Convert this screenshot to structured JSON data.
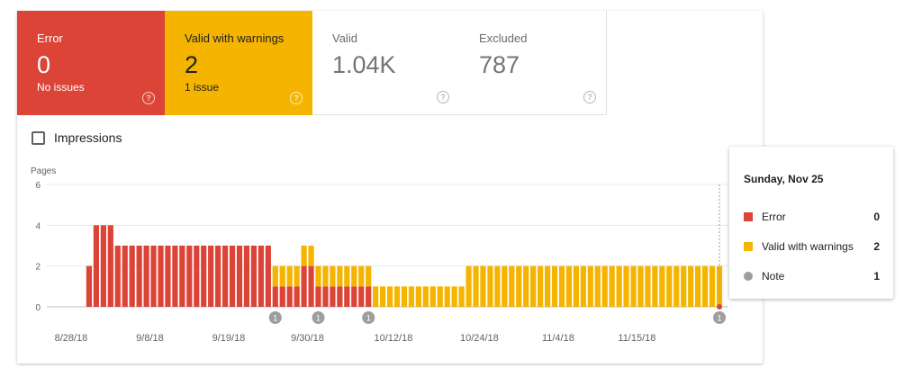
{
  "tiles": [
    {
      "id": "error",
      "label": "Error",
      "value": "0",
      "sub": "No issues"
    },
    {
      "id": "warn",
      "label": "Valid with warnings",
      "value": "2",
      "sub": "1 issue"
    },
    {
      "id": "valid",
      "label": "Valid",
      "value": "1.04K",
      "sub": ""
    },
    {
      "id": "excl",
      "label": "Excluded",
      "value": "787",
      "sub": ""
    }
  ],
  "impressions_label": "Impressions",
  "chart_data": {
    "type": "bar",
    "stacked": true,
    "ylabel": "Pages",
    "ylim": [
      0,
      6
    ],
    "yticks": [
      0,
      2,
      4,
      6
    ],
    "x_start": "8/27/18",
    "x_end": "11/25/18",
    "xtick_labels": [
      "8/28/18",
      "9/8/18",
      "9/19/18",
      "9/30/18",
      "10/12/18",
      "10/24/18",
      "11/4/18",
      "11/15/18"
    ],
    "series": [
      {
        "name": "Error",
        "color": "#db4437",
        "values": [
          0,
          2,
          4,
          4,
          4,
          3,
          3,
          3,
          3,
          3,
          3,
          3,
          3,
          3,
          3,
          3,
          3,
          3,
          3,
          3,
          3,
          3,
          3,
          3,
          3,
          3,
          3,
          1,
          1,
          1,
          1,
          2,
          2,
          1,
          1,
          1,
          1,
          1,
          1,
          1,
          1,
          0,
          0,
          0,
          0,
          0,
          0,
          0,
          0,
          0,
          0,
          0,
          0,
          0,
          0,
          0,
          0,
          0,
          0,
          0,
          0,
          0,
          0,
          0,
          0,
          0,
          0,
          0,
          0,
          0,
          0,
          0,
          0,
          0,
          0,
          0,
          0,
          0,
          0,
          0,
          0,
          0,
          0,
          0,
          0,
          0,
          0,
          0,
          0,
          0
        ]
      },
      {
        "name": "Valid with warnings",
        "color": "#f4b400",
        "values": [
          0,
          0,
          0,
          0,
          0,
          0,
          0,
          0,
          0,
          0,
          0,
          0,
          0,
          0,
          0,
          0,
          0,
          0,
          0,
          0,
          0,
          0,
          0,
          0,
          0,
          0,
          0,
          1,
          1,
          1,
          1,
          1,
          1,
          1,
          1,
          1,
          1,
          1,
          1,
          1,
          1,
          1,
          1,
          1,
          1,
          1,
          1,
          1,
          1,
          1,
          1,
          1,
          1,
          1,
          2,
          2,
          2,
          2,
          2,
          2,
          2,
          2,
          2,
          2,
          2,
          2,
          2,
          2,
          2,
          2,
          2,
          2,
          2,
          2,
          2,
          2,
          2,
          2,
          2,
          2,
          2,
          2,
          2,
          2,
          2,
          2,
          2,
          2,
          2,
          2
        ]
      }
    ],
    "annotations": [
      {
        "index": 27,
        "label": "1"
      },
      {
        "index": 33,
        "label": "1"
      },
      {
        "index": 40,
        "label": "1"
      },
      {
        "index": 89,
        "label": "1"
      }
    ],
    "highlight_index": 89
  },
  "tooltip": {
    "title": "Sunday, Nov 25",
    "rows": [
      {
        "label": "Error",
        "value": "0",
        "color": "#db4437",
        "type": "square"
      },
      {
        "label": "Valid with warnings",
        "value": "2",
        "color": "#f4b400",
        "type": "square"
      },
      {
        "label": "Note",
        "value": "1",
        "color": "#9e9e9e",
        "type": "circle"
      }
    ]
  }
}
